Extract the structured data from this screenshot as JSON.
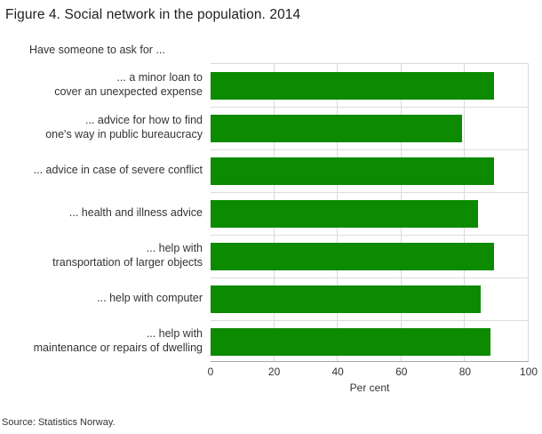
{
  "title": "Figure 4. Social network in the population. 2014",
  "subtitle": "Have someone to ask for ...",
  "source": "Source: Statistics Norway.",
  "chart_data": {
    "type": "bar",
    "orientation": "horizontal",
    "title": "Figure 4. Social network in the population. 2014",
    "subtitle": "Have someone to ask for ...",
    "categories": [
      "... a minor loan to\ncover an unexpected expense",
      "... advice for how to find\none's way in public bureaucracy",
      "... advice in case of severe conflict",
      "... health and illness advice",
      "... help with\ntransportation of larger objects",
      "... help with computer",
      "... help with\nmaintenance or repairs of dwelling"
    ],
    "values": [
      89,
      79,
      89,
      84,
      89,
      85,
      88
    ],
    "xlabel": "Per cent",
    "xlim": [
      0,
      100
    ],
    "xticks": [
      0,
      20,
      40,
      60,
      80,
      100
    ],
    "bar_color": "#0c8a00",
    "gridline_color": "#d9d9d9",
    "grid": "vertical",
    "legend": "none"
  }
}
